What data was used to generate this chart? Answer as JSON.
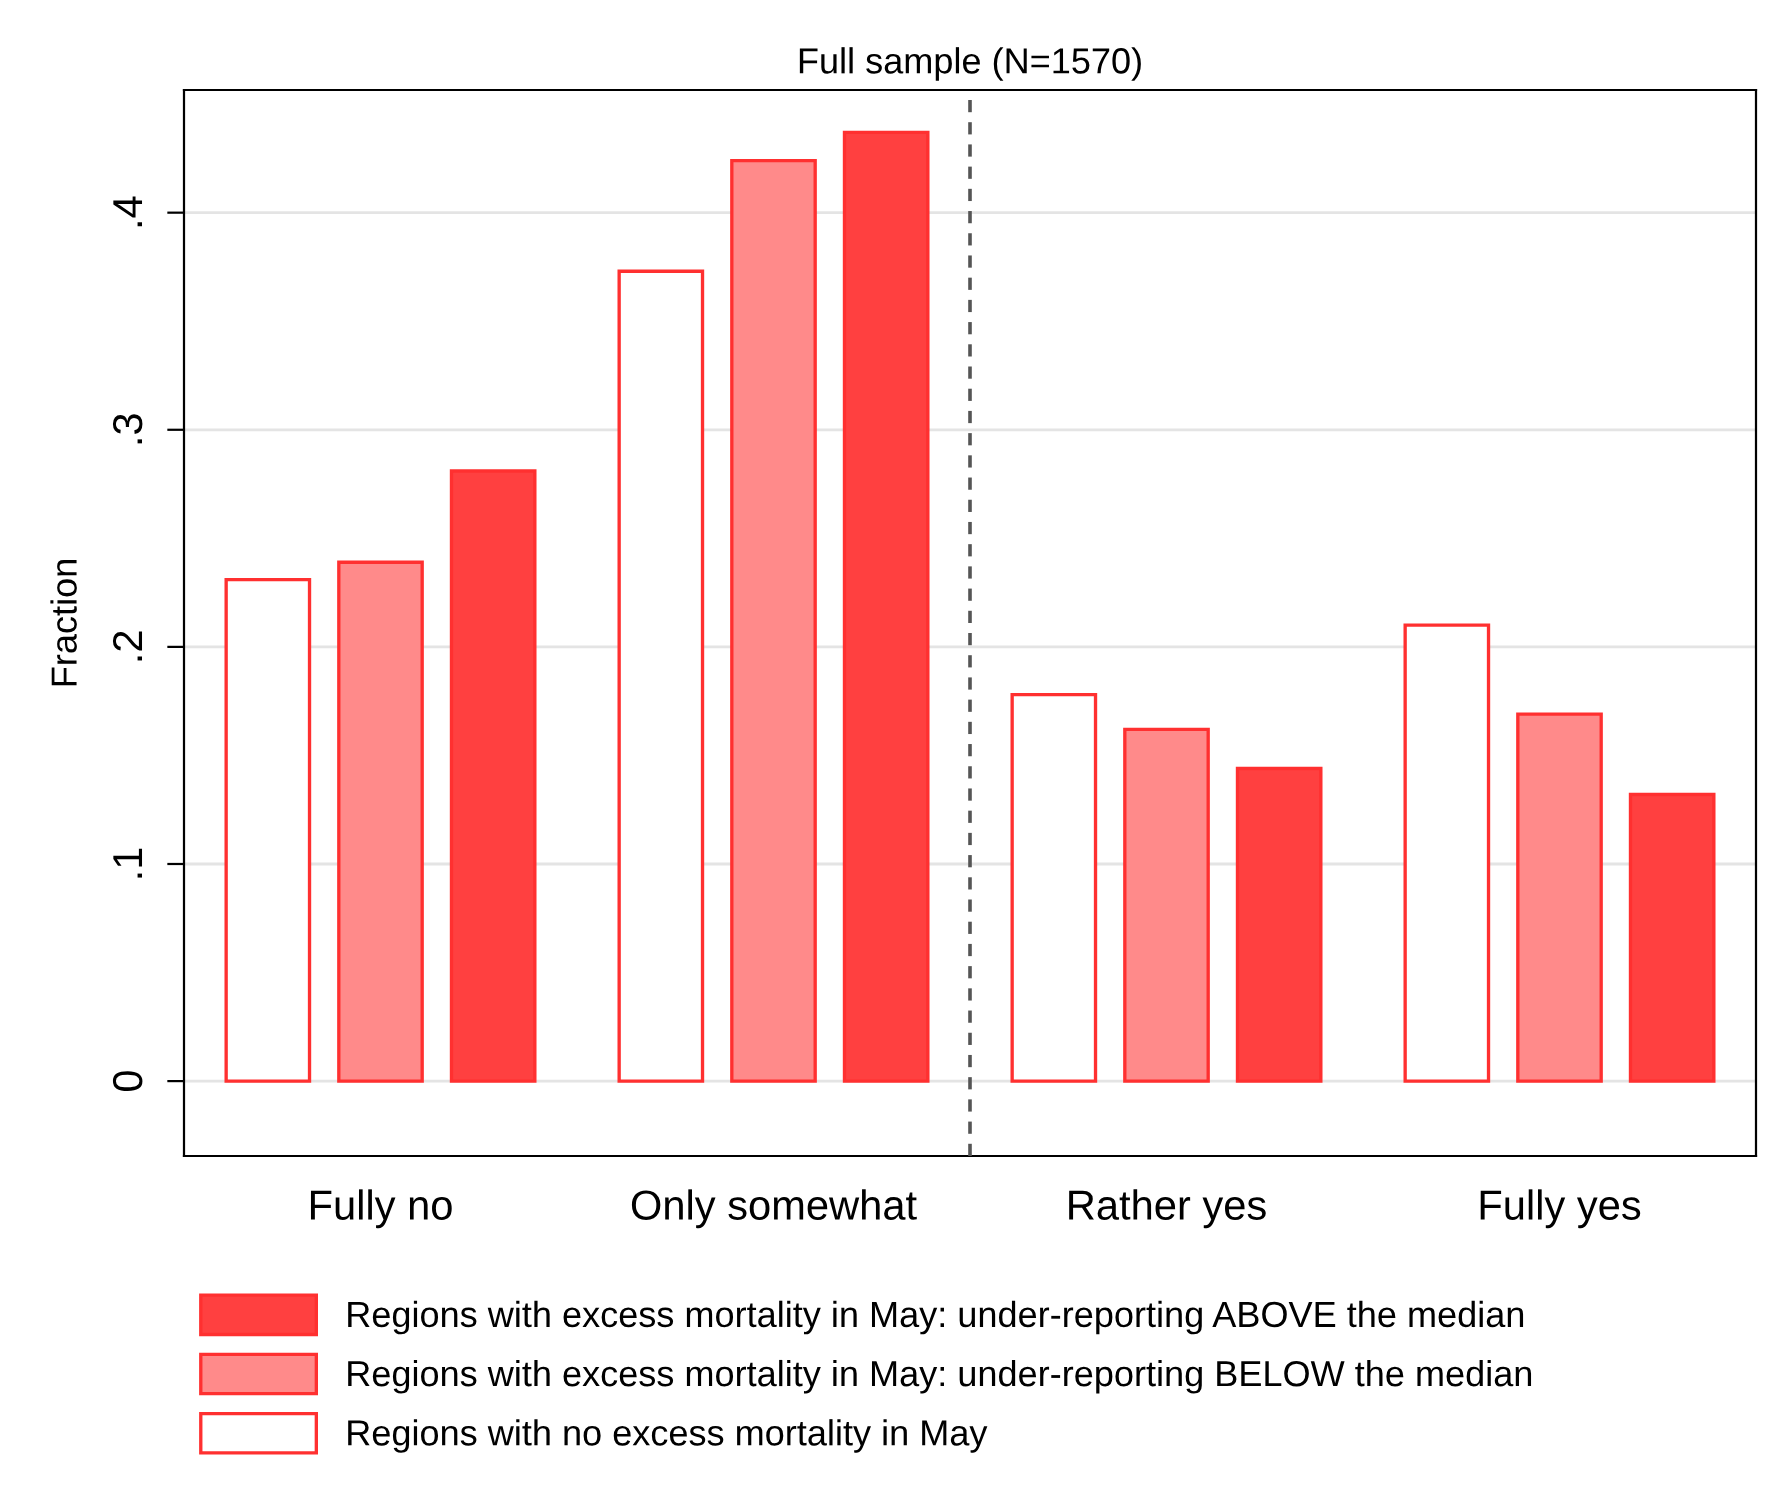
{
  "chart_data": {
    "type": "bar",
    "title": "Full sample (N=1570)",
    "ylabel": "Fraction",
    "categories": [
      "Fully no",
      "Only somewhat",
      "Rather yes",
      "Fully yes"
    ],
    "series": [
      {
        "name": "Regions with no excess mortality in May",
        "color": "#ffffff",
        "values": [
          0.231,
          0.373,
          0.178,
          0.21
        ]
      },
      {
        "name": "Regions with excess mortality in May: under-reporting BELOW the median",
        "color": "#ff8a8a",
        "values": [
          0.239,
          0.424,
          0.162,
          0.169
        ]
      },
      {
        "name": "Regions with excess mortality in May: under-reporting ABOVE the median",
        "color": "#ff4040",
        "values": [
          0.281,
          0.437,
          0.144,
          0.132
        ]
      }
    ],
    "ylim": [
      -0.0345,
      0.4565
    ],
    "yticks": [
      0,
      {
        "value": 0.1,
        "label": ".1"
      },
      {
        "value": 0.2,
        "label": ".2"
      },
      {
        "value": 0.3,
        "label": ".3"
      },
      {
        "value": 0.4,
        "label": ".4"
      }
    ],
    "grid": "y",
    "legend": "bottom"
  }
}
